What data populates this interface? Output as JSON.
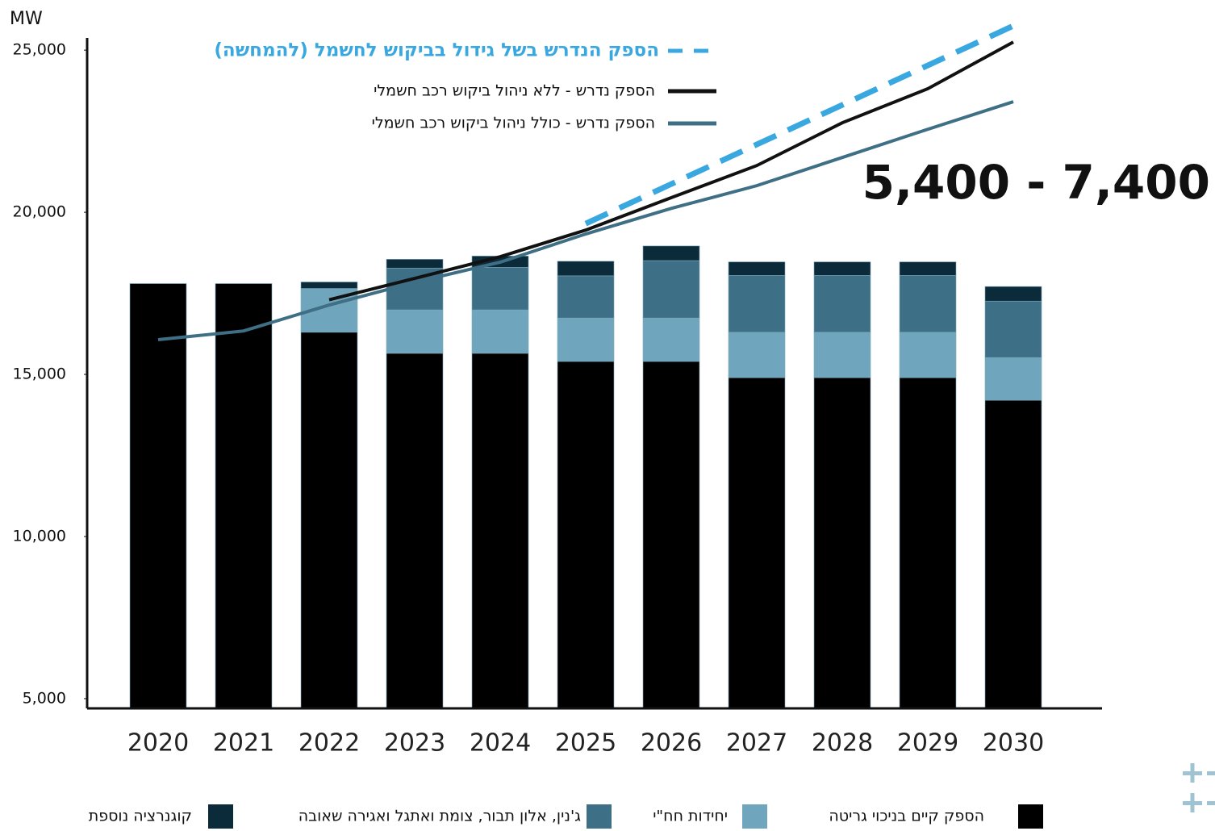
{
  "chart_data": {
    "type": "bar",
    "y_axis_label": "MW",
    "annotation": "5,400 - 7,400",
    "categories": [
      "2020",
      "2021",
      "2022",
      "2023",
      "2024",
      "2025",
      "2026",
      "2027",
      "2028",
      "2029",
      "2030"
    ],
    "ylim": [
      4700,
      25800
    ],
    "yticks": [
      {
        "value": 5000,
        "label": "5,000"
      },
      {
        "value": 10000,
        "label": "10,000"
      },
      {
        "value": 15000,
        "label": "15,000"
      },
      {
        "value": 20000,
        "label": "20,000"
      },
      {
        "value": 25000,
        "label": "25,000"
      }
    ],
    "series": [
      {
        "name": "הספק קיים בניכוי גריטה",
        "color": "#000000",
        "values": [
          17800,
          17800,
          16300,
          15650,
          15650,
          15400,
          15400,
          14900,
          14900,
          14900,
          14200
        ]
      },
      {
        "name": "יחידות חח\"י",
        "color": "#6fa6bd",
        "values": [
          0,
          0,
          1350,
          1340,
          1340,
          1340,
          1340,
          1400,
          1400,
          1400,
          1320
        ]
      },
      {
        "name": "ג'נין, אלון תבור, צומת ואתגל ואגירה שאובה",
        "color": "#3d6f87",
        "values": [
          0,
          0,
          0,
          1290,
          1310,
          1300,
          1770,
          1750,
          1750,
          1750,
          1740
        ]
      },
      {
        "name": "קוגנרציה נוספת",
        "color": "#0b2b3a",
        "values": [
          0,
          0,
          200,
          270,
          350,
          450,
          450,
          420,
          420,
          420,
          450
        ]
      }
    ],
    "line_series": [
      {
        "name": "הספק הנדרש בשל גידול בביקוש לחשמל (להמחשה)",
        "color": "#3aa8e0",
        "dashed": true,
        "values": [
          null,
          null,
          null,
          null,
          null,
          19650,
          20870,
          22090,
          23310,
          24530,
          25750
        ]
      },
      {
        "name": "הספק נדרש - ללא ניהול ביקוש רכב חשמלי",
        "color": "#111111",
        "dashed": false,
        "values": [
          null,
          null,
          17300,
          17960,
          18630,
          19450,
          20450,
          21440,
          22760,
          23810,
          25250
        ]
      },
      {
        "name": "הספק נדרש - כולל ניהול ביקוש רכב חשמלי",
        "color": "#3f6f85",
        "dashed": false,
        "values": [
          16070,
          16340,
          17140,
          17840,
          18460,
          19330,
          20120,
          20820,
          21690,
          22560,
          23410
        ]
      }
    ]
  }
}
